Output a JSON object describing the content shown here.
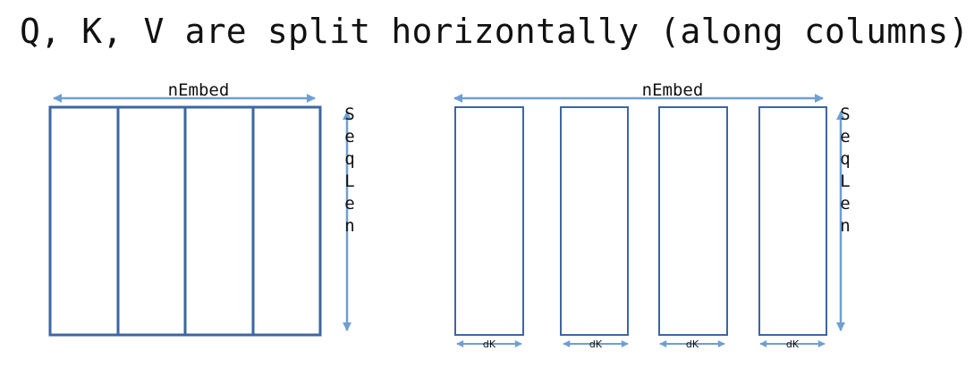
{
  "title": "Q, K, V are split horizontally (along columns)",
  "colors": {
    "box_stroke": "#3d66a3",
    "arrow": "#6f9fd0",
    "text": "#111111"
  },
  "left_matrix": {
    "width_label": "nEmbed",
    "height_label": "SeqLen",
    "column_count": 4
  },
  "right_matrix": {
    "width_label": "nEmbed",
    "height_label": "SeqLen",
    "head_labels": [
      "dK",
      "dK",
      "dK",
      "dK"
    ]
  }
}
